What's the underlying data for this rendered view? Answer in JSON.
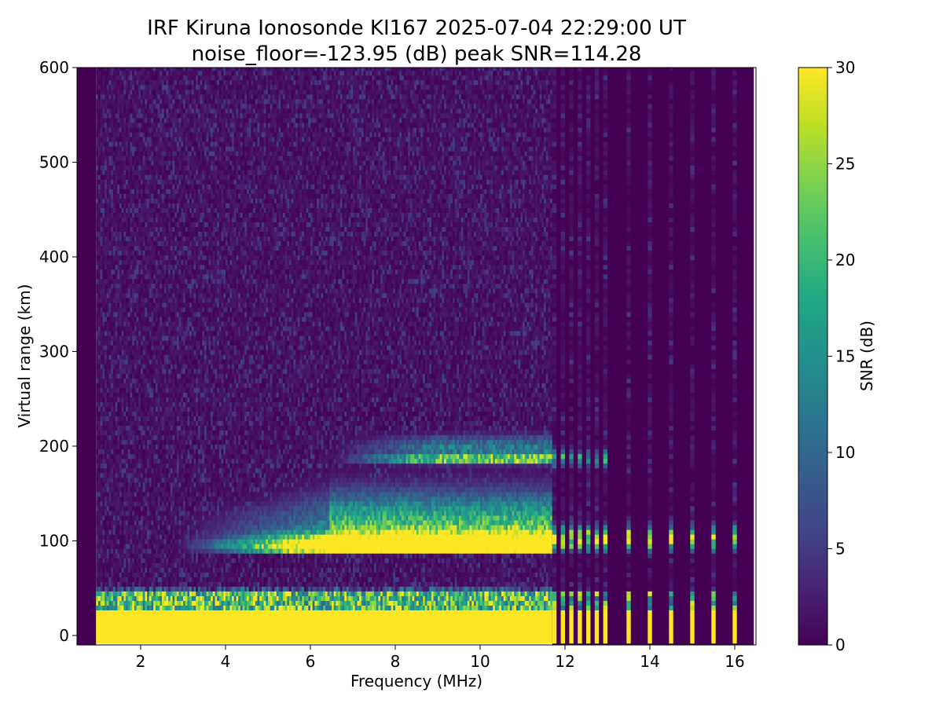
{
  "chart_data": {
    "type": "heatmap",
    "title": "IRF Kiruna Ionosonde KI167 2025-07-04 22:29:00  UT",
    "subtitle": "noise_floor=-123.95 (dB) peak SNR=114.28",
    "xlabel": "Frequency (MHz)",
    "ylabel": "Virtual range (km)",
    "xlim": [
      0.5,
      16.5
    ],
    "ylim": [
      -10,
      600
    ],
    "x_ticks": [
      2,
      4,
      6,
      8,
      10,
      12,
      14,
      16
    ],
    "y_ticks": [
      0,
      100,
      200,
      300,
      400,
      500,
      600
    ],
    "grid": false,
    "colorbar": {
      "label": "SNR (dB)",
      "range": [
        0,
        30
      ],
      "ticks": [
        0,
        5,
        10,
        15,
        20,
        25,
        30
      ],
      "colormap": "viridis"
    },
    "data_extent": {
      "x": [
        0.95,
        16.45
      ],
      "y": [
        -8,
        600
      ]
    },
    "features": [
      {
        "name": "ground-clutter",
        "freq_range": [
          0.95,
          11.7
        ],
        "range_km": [
          -8,
          45
        ],
        "snr": 30
      },
      {
        "name": "clutter-fringe",
        "freq_range": [
          0.95,
          11.7
        ],
        "range_km": [
          25,
          48
        ],
        "snr": 15
      },
      {
        "name": "E-layer-echo",
        "freq_range": [
          2.7,
          11.7
        ],
        "range_km": [
          85,
          140
        ],
        "peak_range_km": 95,
        "snr": 30
      },
      {
        "name": "E-layer-second-hop",
        "freq_range": [
          6.4,
          11.7
        ],
        "range_km": [
          178,
          210
        ],
        "peak_range_km": 183,
        "snr": 22
      },
      {
        "name": "sparse-sounding-region",
        "freq_range": [
          11.7,
          16.45
        ],
        "freqs": [
          11.75,
          11.95,
          12.15,
          12.35,
          12.55,
          12.75,
          12.95,
          13.5,
          14.0,
          14.5,
          15.0,
          15.5,
          16.0
        ],
        "snr": 30
      }
    ]
  }
}
